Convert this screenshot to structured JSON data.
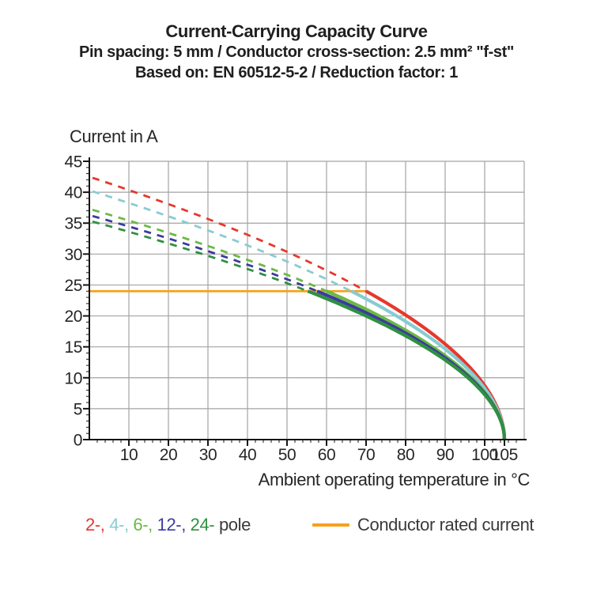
{
  "header": {
    "title": "Current-Carrying Capacity Curve",
    "subtitle_line1": "Pin spacing: 5 mm / Conductor cross-section: 2.5 mm² \"f-st\"",
    "subtitle_line2": "Based on: EN 60512-5-2 / Reduction factor: 1"
  },
  "chart_data": {
    "type": "line",
    "title": "Current-Carrying Capacity Curve",
    "xlabel": "Ambient operating temperature in °C",
    "ylabel": "Current in A",
    "xlim": [
      0,
      110
    ],
    "ylim": [
      0,
      45
    ],
    "xticks": [
      10,
      20,
      30,
      40,
      50,
      60,
      70,
      80,
      90,
      100,
      105
    ],
    "yticks": [
      0,
      5,
      10,
      15,
      20,
      25,
      30,
      35,
      40,
      45
    ],
    "grid": true,
    "grid_color": "#a3a3a3",
    "x": [
      0,
      10,
      20,
      30,
      40,
      50,
      60,
      70,
      80,
      90,
      100,
      105
    ],
    "series": [
      {
        "name": "2-pole",
        "legend_label": "2-",
        "color": "#e6382c",
        "current_at_0_deg": 42.5,
        "becomes_solid_at_deg": 70,
        "zero_at_deg": 105,
        "values": [
          42.5,
          40.3,
          38.1,
          35.7,
          33.1,
          30.4,
          27.4,
          24.0,
          20.2,
          15.4,
          8.7,
          0
        ]
      },
      {
        "name": "4-pole",
        "legend_label": "4-",
        "color": "#87ccd2",
        "current_at_0_deg": 40.3,
        "becomes_solid_at_deg": 66,
        "zero_at_deg": 105,
        "values": [
          40.3,
          38.3,
          36.1,
          33.8,
          31.4,
          28.8,
          25.9,
          22.8,
          19.1,
          14.7,
          8.3,
          0
        ]
      },
      {
        "name": "6-pole",
        "legend_label": "6-",
        "color": "#6ab944",
        "current_at_0_deg": 37.3,
        "becomes_solid_at_deg": 60,
        "zero_at_deg": 105,
        "values": [
          37.3,
          35.4,
          33.4,
          31.3,
          29.1,
          26.6,
          24.0,
          21.1,
          17.7,
          13.6,
          7.7,
          0
        ]
      },
      {
        "name": "12-pole",
        "legend_label": "12-",
        "color": "#3d3b9e",
        "current_at_0_deg": 36.3,
        "becomes_solid_at_deg": 58,
        "zero_at_deg": 105,
        "values": [
          36.3,
          34.5,
          32.5,
          30.5,
          28.3,
          25.9,
          23.4,
          20.5,
          17.2,
          13.2,
          7.5,
          0
        ]
      },
      {
        "name": "24-pole",
        "legend_label": "24-",
        "color": "#2f9041",
        "current_at_0_deg": 35.4,
        "becomes_solid_at_deg": 55,
        "zero_at_deg": 105,
        "values": [
          35.4,
          33.6,
          31.7,
          29.7,
          27.6,
          25.3,
          22.8,
          20.0,
          16.8,
          12.9,
          7.3,
          0
        ]
      }
    ],
    "rated_current": {
      "value": 24,
      "label": "Conductor rated current",
      "color": "#f7a01b",
      "line_ends_at_temp": 70
    },
    "legend_pole_suffix": " pole",
    "legend_separator": " "
  }
}
